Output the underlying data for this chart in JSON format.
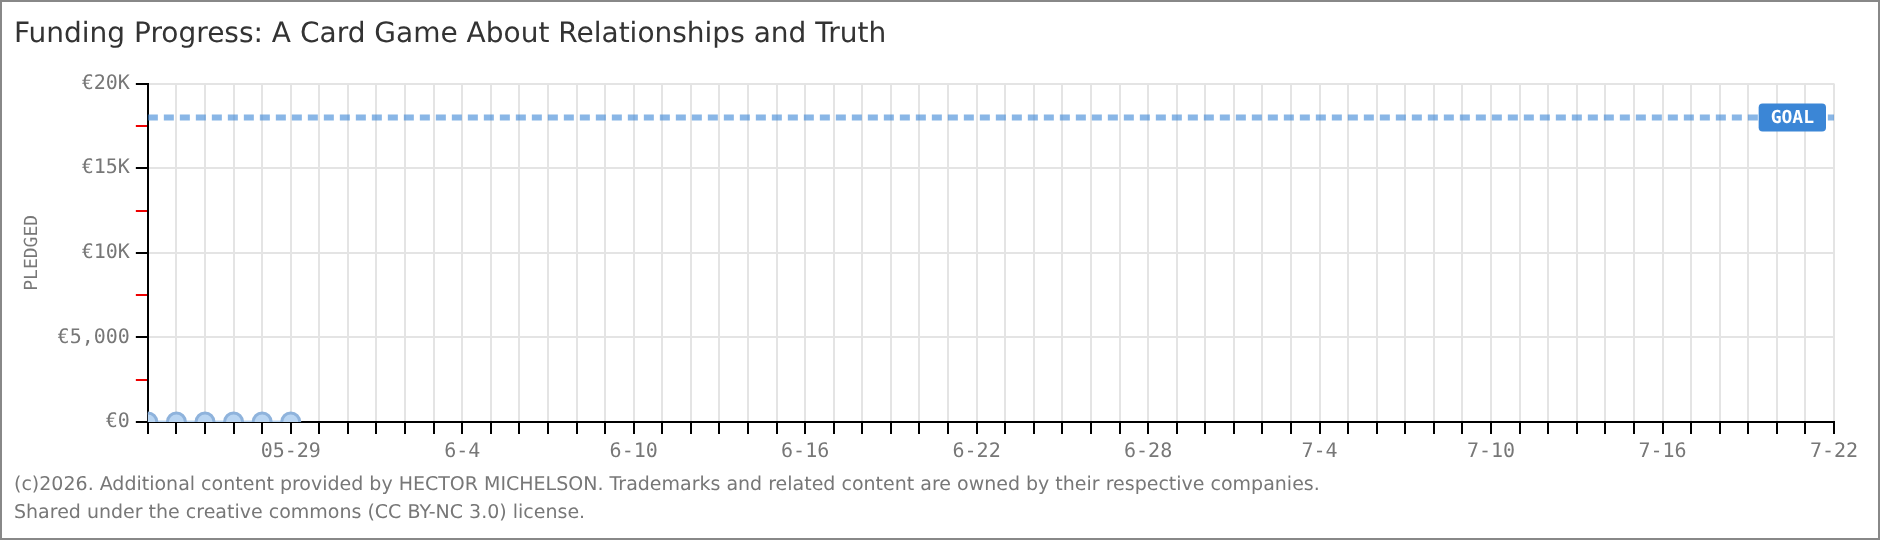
{
  "chart_data": {
    "type": "line",
    "title": "Funding Progress: A Card Game About Relationships and Truth",
    "ylabel": "PLEDGED",
    "x": [
      "--05-24",
      "--05-25",
      "--05-26",
      "--05-27",
      "--05-28",
      "--05-29"
    ],
    "series": [
      {
        "color": "#b9d5f2",
        "values": [
          0,
          0,
          0,
          0,
          0,
          0
        ]
      }
    ],
    "xlim": [
      "--05-24",
      "--07-22"
    ],
    "xticks": [
      {
        "value": "--05-24",
        "label": null
      },
      {
        "value": "--05-25",
        "label": null
      },
      {
        "value": "--05-26",
        "label": null
      },
      {
        "value": "--05-27",
        "label": null
      },
      {
        "value": "--05-28",
        "label": null
      },
      {
        "value": "--05-29",
        "label": "05-29"
      },
      {
        "value": "--05-30",
        "label": null
      },
      {
        "value": "--05-31",
        "label": null
      },
      {
        "value": "--06-01",
        "label": null
      },
      {
        "value": "--06-02",
        "label": null
      },
      {
        "value": "--06-03",
        "label": null
      },
      {
        "value": "--06-04",
        "label": "6-4"
      },
      {
        "value": "--06-05",
        "label": null
      },
      {
        "value": "--06-06",
        "label": null
      },
      {
        "value": "--06-07",
        "label": null
      },
      {
        "value": "--06-08",
        "label": null
      },
      {
        "value": "--06-09",
        "label": null
      },
      {
        "value": "--06-10",
        "label": "6-10"
      },
      {
        "value": "--06-11",
        "label": null
      },
      {
        "value": "--06-12",
        "label": null
      },
      {
        "value": "--06-13",
        "label": null
      },
      {
        "value": "--06-14",
        "label": null
      },
      {
        "value": "--06-15",
        "label": null
      },
      {
        "value": "--06-16",
        "label": "6-16"
      },
      {
        "value": "--06-17",
        "label": null
      },
      {
        "value": "--06-18",
        "label": null
      },
      {
        "value": "--06-19",
        "label": null
      },
      {
        "value": "--06-20",
        "label": null
      },
      {
        "value": "--06-21",
        "label": null
      },
      {
        "value": "--06-22",
        "label": "6-22"
      },
      {
        "value": "--06-23",
        "label": null
      },
      {
        "value": "--06-24",
        "label": null
      },
      {
        "value": "--06-25",
        "label": null
      },
      {
        "value": "--06-26",
        "label": null
      },
      {
        "value": "--06-27",
        "label": null
      },
      {
        "value": "--06-28",
        "label": "6-28"
      },
      {
        "value": "--06-29",
        "label": null
      },
      {
        "value": "--06-30",
        "label": null
      },
      {
        "value": "--07-01",
        "label": null
      },
      {
        "value": "--07-02",
        "label": null
      },
      {
        "value": "--07-03",
        "label": null
      },
      {
        "value": "--07-04",
        "label": "7-4"
      },
      {
        "value": "--07-05",
        "label": null
      },
      {
        "value": "--07-06",
        "label": null
      },
      {
        "value": "--07-07",
        "label": null
      },
      {
        "value": "--07-08",
        "label": null
      },
      {
        "value": "--07-09",
        "label": null
      },
      {
        "value": "--07-10",
        "label": "7-10"
      },
      {
        "value": "--07-11",
        "label": null
      },
      {
        "value": "--07-12",
        "label": null
      },
      {
        "value": "--07-13",
        "label": null
      },
      {
        "value": "--07-14",
        "label": null
      },
      {
        "value": "--07-15",
        "label": null
      },
      {
        "value": "--07-16",
        "label": "7-16"
      },
      {
        "value": "--07-17",
        "label": null
      },
      {
        "value": "--07-18",
        "label": null
      },
      {
        "value": "--07-19",
        "label": null
      },
      {
        "value": "--07-20",
        "label": null
      },
      {
        "value": "--07-21",
        "label": null
      },
      {
        "value": "--07-22",
        "label": "7-22"
      }
    ],
    "ylim": [
      0,
      20000
    ],
    "yticks": [
      {
        "value": 0,
        "label": "€0"
      },
      {
        "value": 2500,
        "label": null
      },
      {
        "value": 5000,
        "label": "€5,000"
      },
      {
        "value": 7500,
        "label": null
      },
      {
        "value": 10000,
        "label": "€10K"
      },
      {
        "value": 12500,
        "label": null
      },
      {
        "value": 15000,
        "label": "€15K"
      },
      {
        "value": 17500,
        "label": null
      },
      {
        "value": 20000,
        "label": "€20K"
      }
    ],
    "ref_lines": [
      {
        "axis": "y",
        "value": 18000,
        "label": "GOAL",
        "color": "#3b86d6",
        "line_style": "dashed"
      }
    ],
    "grid": true,
    "marker": "circle",
    "legend": false,
    "annotations": [
      "(c)2026. Additional content provided by HECTOR MICHELSON. Trademarks and related content are owned by their respective companies.",
      "Shared under the creative commons (CC BY-NC 3.0) license."
    ]
  }
}
